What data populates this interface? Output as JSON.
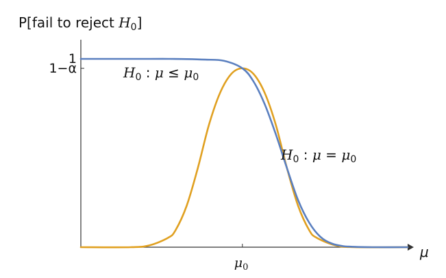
{
  "chart_data": {
    "type": "line",
    "ylabel": "P[fail to reject H0]",
    "xlabel": "μ",
    "x_ticks": [
      {
        "value": 0,
        "label": "μ0"
      }
    ],
    "y_ticks": [
      {
        "value": 1,
        "label": "1"
      },
      {
        "value": 0.95,
        "label": "1−α"
      }
    ],
    "xlim": [
      -4.35,
      4.45
    ],
    "ylim": [
      0,
      1
    ],
    "grid": false,
    "series": [
      {
        "name": "H0 : μ ≤ μ0",
        "color": "#5a7fbf",
        "x": [
          -4.35,
          -3.5,
          -2.5,
          -2.0,
          -1.5,
          -1.0,
          -0.5,
          0.0,
          0.3,
          0.6,
          0.9,
          1.2,
          1.5,
          1.8,
          2.1,
          2.4,
          2.7,
          3.0,
          3.5,
          4.45
        ],
        "y": [
          1.0,
          1.0,
          1.0,
          1.0,
          0.999,
          0.996,
          0.99,
          0.95,
          0.88,
          0.76,
          0.6,
          0.42,
          0.25,
          0.13,
          0.055,
          0.02,
          0.006,
          0.002,
          0.0,
          0.0
        ]
      },
      {
        "name": "H0 : μ = μ0",
        "color": "#e0a020",
        "x": [
          -4.35,
          -3.0,
          -2.5,
          -2.0,
          -1.8,
          -1.5,
          -1.2,
          -0.9,
          -0.6,
          -0.3,
          0.0,
          0.3,
          0.6,
          0.9,
          1.2,
          1.5,
          1.8,
          2.0,
          2.5,
          3.0,
          4.45
        ],
        "y": [
          0.0,
          0.0,
          0.01,
          0.05,
          0.09,
          0.22,
          0.42,
          0.65,
          0.82,
          0.92,
          0.95,
          0.92,
          0.82,
          0.65,
          0.42,
          0.22,
          0.09,
          0.05,
          0.01,
          0.0,
          0.0
        ]
      }
    ],
    "annotations": [
      {
        "text": "H0 : μ ≤ μ0",
        "series": 0
      },
      {
        "text": "H0 : μ = μ0",
        "series": 1
      }
    ]
  }
}
